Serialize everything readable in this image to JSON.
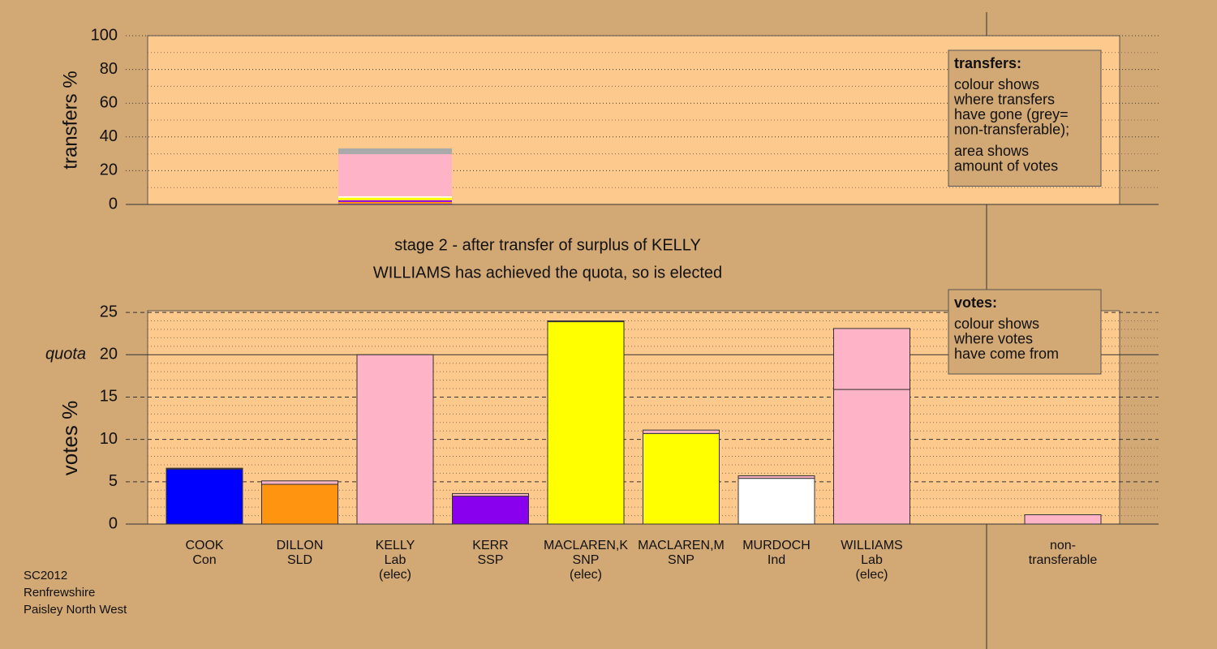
{
  "chart_data": [
    {
      "type": "stacked-bar",
      "ylabel": "transfers %",
      "ylim": [
        0,
        100
      ],
      "yticks": [
        0,
        20,
        40,
        60,
        80,
        100
      ],
      "minor_yticks": [
        10,
        30,
        50,
        70,
        90
      ],
      "grid": true,
      "series": [
        {
          "color": "#0000ff",
          "values": [
            0.3
          ]
        },
        {
          "color": "#ff9410",
          "values": [
            1.2
          ]
        },
        {
          "color": "#8800ee",
          "values": [
            1.0
          ]
        },
        {
          "color": "#ffff00",
          "values": [
            0.3
          ]
        },
        {
          "color": "#ffff00",
          "values": [
            1.2
          ]
        },
        {
          "color": "#ffffff",
          "values": [
            0.9
          ]
        },
        {
          "color": "#ffb3c6",
          "values": [
            24.9
          ]
        },
        {
          "color": "#aaaaaa",
          "values": [
            3.4
          ]
        }
      ],
      "note": {
        "title": "transfers:",
        "paragraphs": [
          [
            "colour shows",
            "where transfers",
            "have gone (grey=",
            "non-transferable);"
          ],
          [
            "area shows",
            "amount of votes"
          ]
        ]
      }
    },
    {
      "type": "stacked-bar",
      "title": "stage 2 - after transfer of surplus of KELLY",
      "subtitle": "WILLIAMS has achieved the quota, so is elected",
      "ylabel": "votes %",
      "ylim": [
        0,
        25.2
      ],
      "yticks": [
        0,
        5,
        10,
        15,
        20,
        25
      ],
      "minor_yticks": [
        1,
        2,
        3,
        4,
        6,
        7,
        8,
        9,
        11,
        12,
        13,
        14,
        16,
        17,
        18,
        19,
        21,
        22,
        23,
        24
      ],
      "grid": true,
      "quota": 20,
      "quota_label": "quota",
      "categories": [
        [
          "COOK",
          "Con"
        ],
        [
          "DILLON",
          "SLD"
        ],
        [
          "KELLY",
          "Lab",
          "(elec)"
        ],
        [
          "KERR",
          "SSP"
        ],
        [
          "MACLAREN,K",
          "SNP",
          "(elec)"
        ],
        [
          "MACLAREN,M",
          "SNP"
        ],
        [
          "MURDOCH",
          "Ind"
        ],
        [
          "WILLIAMS",
          "Lab",
          "(elec)"
        ],
        [
          "non-",
          "transferable"
        ]
      ],
      "series": [
        {
          "colors": [
            "#0000ff",
            "#ff9410",
            "#ffb3c6",
            "#8800ee",
            "#ffff00",
            "#ffff00",
            "#ffffff",
            "#ffb3c6",
            "#ffb3c6"
          ],
          "values": [
            6.5,
            4.7,
            20,
            3.3,
            23.9,
            10.7,
            5.4,
            15.9,
            0
          ]
        },
        {
          "color": "#ffb3c6",
          "values": [
            0.1,
            0.4,
            0,
            0.3,
            0.1,
            0.4,
            0.3,
            7.2,
            1.1
          ]
        }
      ],
      "note": {
        "title": "votes:",
        "paragraphs": [
          [
            "colour shows",
            "where votes",
            "have come from"
          ]
        ]
      }
    }
  ],
  "footer": [
    "SC2012",
    "Renfrewshire",
    "Paisley North West"
  ]
}
